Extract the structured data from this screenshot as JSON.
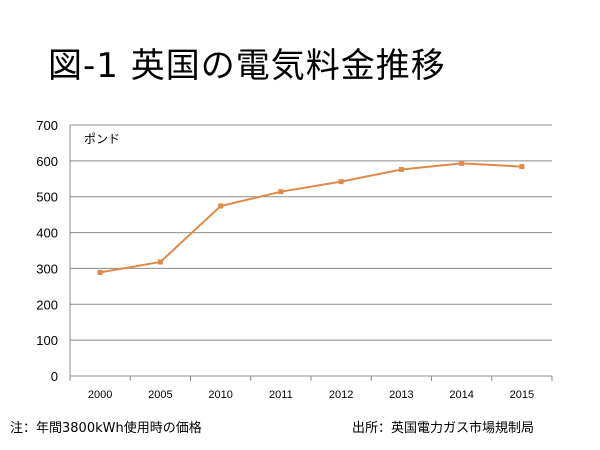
{
  "title": "図-1 英国の電気料金推移",
  "note": "注：年間3800kWh使用時の価格",
  "source": "出所：英国電力ガス市場規制局",
  "chart_data": {
    "type": "line",
    "categories": [
      "2000",
      "2005",
      "2010",
      "2011",
      "2012",
      "2013",
      "2014",
      "2015"
    ],
    "series": [
      {
        "values": [
          289,
          318,
          474,
          514,
          542,
          576,
          593,
          584
        ]
      }
    ],
    "ylabel": "ポンド",
    "ylim": [
      0,
      700
    ],
    "yticks": [
      "0",
      "100",
      "200",
      "300",
      "400",
      "500",
      "600",
      "700"
    ],
    "grid": true,
    "line_color": "#E0894A",
    "grid_color": "#8C8C8C"
  }
}
